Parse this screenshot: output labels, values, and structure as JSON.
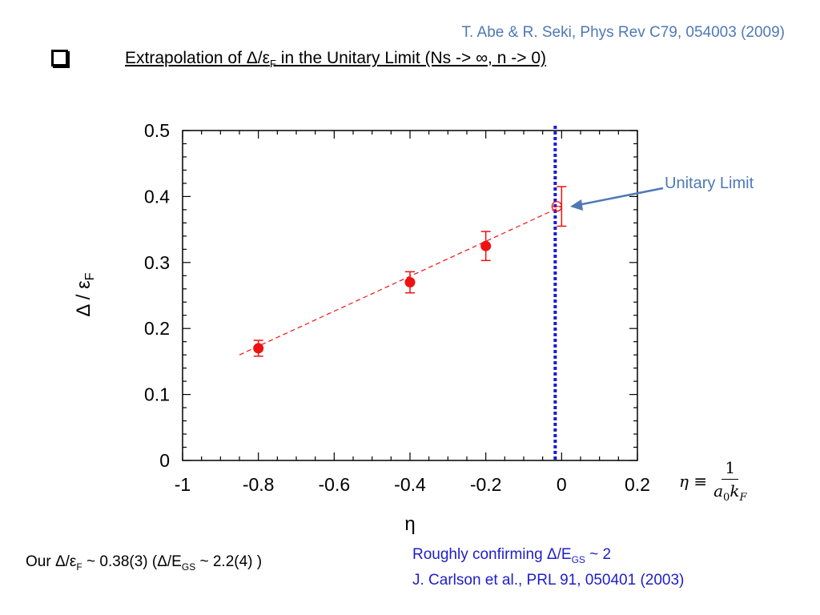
{
  "header": {
    "citation": "T. Abe & R. Seki, Phys Rev C79, 054003 (2009)",
    "heading_main": "Extrapolation of Δ/ε",
    "heading_sub": "F",
    "heading_tail": " in the Unitary Limit (Ns -> ∞, n -> 0)"
  },
  "definition": {
    "lhs": "η ≡",
    "numerator": "1",
    "den_a": "a",
    "den_a_sub": "0",
    "den_k": "k",
    "den_k_sub": "F"
  },
  "footer": {
    "result_a": "Our Δ/ε",
    "result_a_sub": "F",
    "result_b": " ~ 0.38(3)  (Δ/E",
    "result_b_sub": "GS",
    "result_c": " ~ 2.2(4) )",
    "confirm_a": "Roughly confirming Δ/E",
    "confirm_a_sub": "GS",
    "confirm_b": " ~ 2",
    "confirm_ref": "J. Carlson et al., PRL 91, 050401 (2003)"
  },
  "chart_data": {
    "type": "scatter",
    "xlabel": "η",
    "ylabel": "Δ / ε",
    "ylabel_sub": "F",
    "xlim": [
      -1,
      0.2
    ],
    "ylim": [
      0,
      0.5
    ],
    "x_ticks": [
      "-1",
      "-0.8",
      "-0.6",
      "-0.4",
      "-0.2",
      "0",
      "0.2"
    ],
    "y_ticks": [
      "0",
      "0.1",
      "0.2",
      "0.3",
      "0.4",
      "0.5"
    ],
    "series": [
      {
        "points": [
          {
            "x": -0.8,
            "y": 0.17,
            "err": 0.012
          },
          {
            "x": -0.4,
            "y": 0.27,
            "err": 0.016
          },
          {
            "x": -0.2,
            "y": 0.325,
            "err": 0.022
          }
        ]
      }
    ],
    "extrapolated_point": {
      "x": 0,
      "y": 0.385,
      "err": 0.03
    },
    "fit_line": {
      "x": [
        -0.85,
        0
      ],
      "y": [
        0.16,
        0.385
      ]
    },
    "vertical_line_x": 0,
    "annotation": "Unitary Limit",
    "colors": {
      "data": "#ee1111",
      "vline": "#1a1ad6",
      "annotation": "#4e79b5"
    }
  }
}
